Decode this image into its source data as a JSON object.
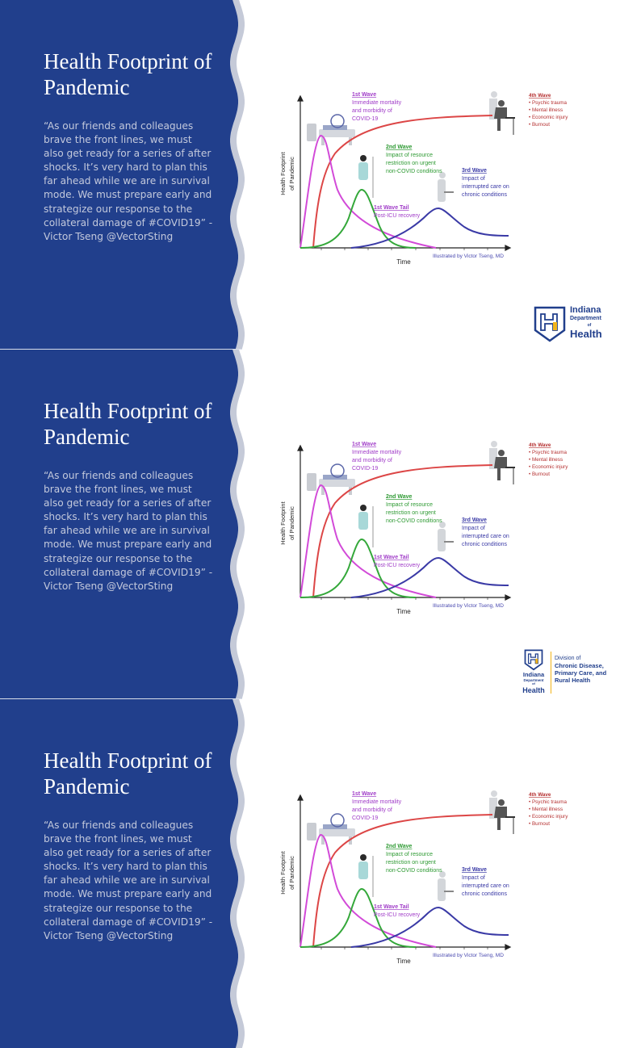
{
  "slides": [
    {
      "title": "Health Footprint of Pandemic",
      "quote": "“As our friends and colleagues brave the front lines, we must also get ready for a series of after shocks. It’s very hard to plan this far ahead while we are in survival mode. We must prepare early and strategize our response to the collateral damage of #COVID19” - Victor Tseng @VectorSting",
      "logo": "idoh"
    },
    {
      "title": "Health Footprint of Pandemic",
      "quote": "“As our friends and colleagues brave the front lines, we must also get ready for a series of after shocks. It’s very hard to plan this far ahead while we are in survival mode. We must prepare early and strategize our response to the collateral damage of #COVID19” - Victor Tseng @VectorSting",
      "logo": "division"
    },
    {
      "title": "Health Footprint of Pandemic",
      "quote": "“As our friends and colleagues brave the front lines, we must also get ready for a series of after shocks. It’s very hard to plan this far ahead while we are in survival mode. We must prepare early and strategize our response to the collateral damage of #COVID19” - Victor Tseng @VectorSting",
      "logo": "none"
    }
  ],
  "figure": {
    "ylabel_line1": "Health Footprint",
    "ylabel_line2": "of Pandemic",
    "xlabel": "Time",
    "credit": "Illustrated by Victor Tseng, MD",
    "wave1": {
      "title": "1st Wave",
      "lines": [
        "Immediate mortality",
        "and morbidity of",
        "COVID-19"
      ]
    },
    "wave1_tail": {
      "title": "1st Wave Tail",
      "lines": [
        "Post-ICU recovery"
      ]
    },
    "wave2": {
      "title": "2nd Wave",
      "lines": [
        "Impact of resource",
        "restriction on urgent",
        "non-COVID conditions"
      ]
    },
    "wave3": {
      "title": "3rd Wave",
      "lines": [
        "Impact of",
        "interrupted care on",
        "chronic conditions"
      ]
    },
    "wave4": {
      "title": "4th Wave",
      "lines": [
        "• Psychic trauma",
        "• Mental illness",
        "• Economic injury",
        "• Burnout"
      ]
    }
  },
  "logos": {
    "idoh": {
      "line1": "Indiana",
      "line2": "Department",
      "line3": "of",
      "line4": "Health"
    },
    "division": {
      "line1": "Division of",
      "line2": "Chronic Disease,",
      "line3": "Primary Care, and",
      "line4": "Rural Health"
    }
  },
  "colors": {
    "panel": "#213f8c",
    "wave_border": "#c5cad8",
    "wave1": "#d24ad8",
    "wave2": "#34a83a",
    "wave3": "#3a3aa6",
    "wave4": "#dc4646",
    "wave1_text": "#a03cc8",
    "wave4_text": "#b53030",
    "logo_blue": "#213f8c",
    "logo_gold": "#f2b418"
  }
}
